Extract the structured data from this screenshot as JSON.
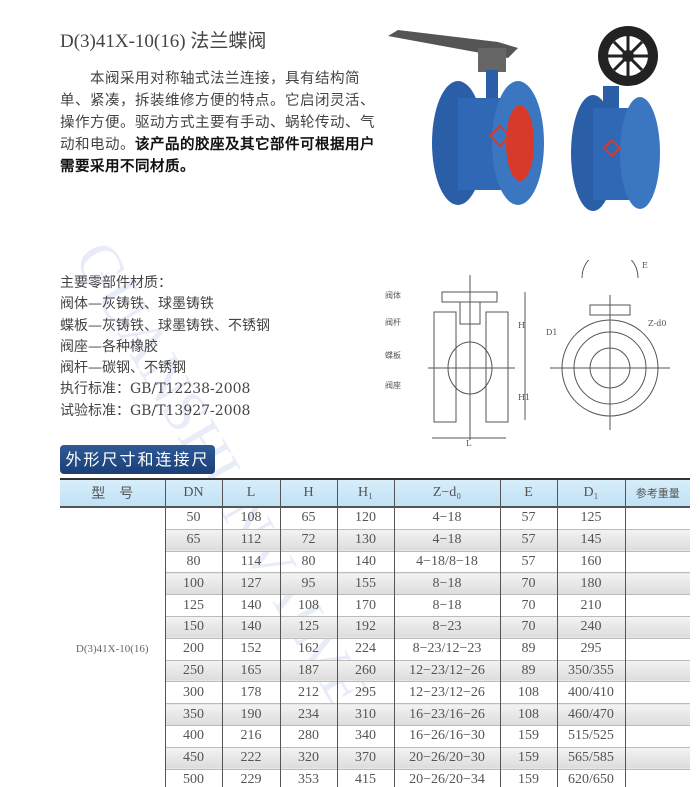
{
  "title": "D(3)41X-10(16) 法兰蝶阀",
  "intro": {
    "normal": "本阀采用对称轴式法兰连接，具有结构简单、紧凑，拆装维修方便的特点。它启闭灵活、操作方便。驱动方式主要有手动、蜗轮传动、气动和电动。",
    "bold": "该产品的胶座及其它部件可根据用户需要采用不同材质。"
  },
  "materials": [
    "主要零部件材质：",
    "阀体—灰铸铁、球墨铸铁",
    "蝶板—灰铸铁、球墨铸铁、不锈钢",
    "阀座—各种橡胶",
    "阀杆—碳钢、不锈钢",
    "执行标准：GB/T12238-2008",
    "试验标准：GB/T13927-2008"
  ],
  "drawing": {
    "labels": [
      "阀体",
      "阀杆",
      "蝶板",
      "阀座"
    ],
    "dims": [
      "L",
      "H",
      "H1",
      "E",
      "D1",
      "Z-d0"
    ]
  },
  "banner": "外形尺寸和连接尺寸",
  "table": {
    "headers": [
      "型　号",
      "DN",
      "L",
      "H",
      "H₁",
      "Z−d₀",
      "E",
      "D₁",
      "参考重量"
    ],
    "model": "D(3)41X-10(16)",
    "rows": [
      [
        "50",
        "108",
        "65",
        "120",
        "4−18",
        "57",
        "125",
        ""
      ],
      [
        "65",
        "112",
        "72",
        "130",
        "4−18",
        "57",
        "145",
        ""
      ],
      [
        "80",
        "114",
        "80",
        "140",
        "4−18/8−18",
        "57",
        "160",
        ""
      ],
      [
        "100",
        "127",
        "95",
        "155",
        "8−18",
        "70",
        "180",
        ""
      ],
      [
        "125",
        "140",
        "108",
        "170",
        "8−18",
        "70",
        "210",
        ""
      ],
      [
        "150",
        "140",
        "125",
        "192",
        "8−23",
        "70",
        "240",
        ""
      ],
      [
        "200",
        "152",
        "162",
        "224",
        "8−23/12−23",
        "89",
        "295",
        ""
      ],
      [
        "250",
        "165",
        "187",
        "260",
        "12−23/12−26",
        "89",
        "350/355",
        ""
      ],
      [
        "300",
        "178",
        "212",
        "295",
        "12−23/12−26",
        "108",
        "400/410",
        ""
      ],
      [
        "350",
        "190",
        "234",
        "310",
        "16−23/16−26",
        "108",
        "460/470",
        ""
      ],
      [
        "400",
        "216",
        "280",
        "340",
        "16−26/16−30",
        "159",
        "515/525",
        ""
      ],
      [
        "450",
        "222",
        "320",
        "370",
        "20−26/20−30",
        "159",
        "565/585",
        ""
      ],
      [
        "500",
        "229",
        "353",
        "415",
        "20−26/20−34",
        "159",
        "620/650",
        ""
      ]
    ]
  },
  "watermark": "GUANSHUNVALVE",
  "colors": {
    "banner": "#1f4580",
    "header": "#cde8f7",
    "valve": "#2a5fa8",
    "seat": "#d83a2a"
  }
}
